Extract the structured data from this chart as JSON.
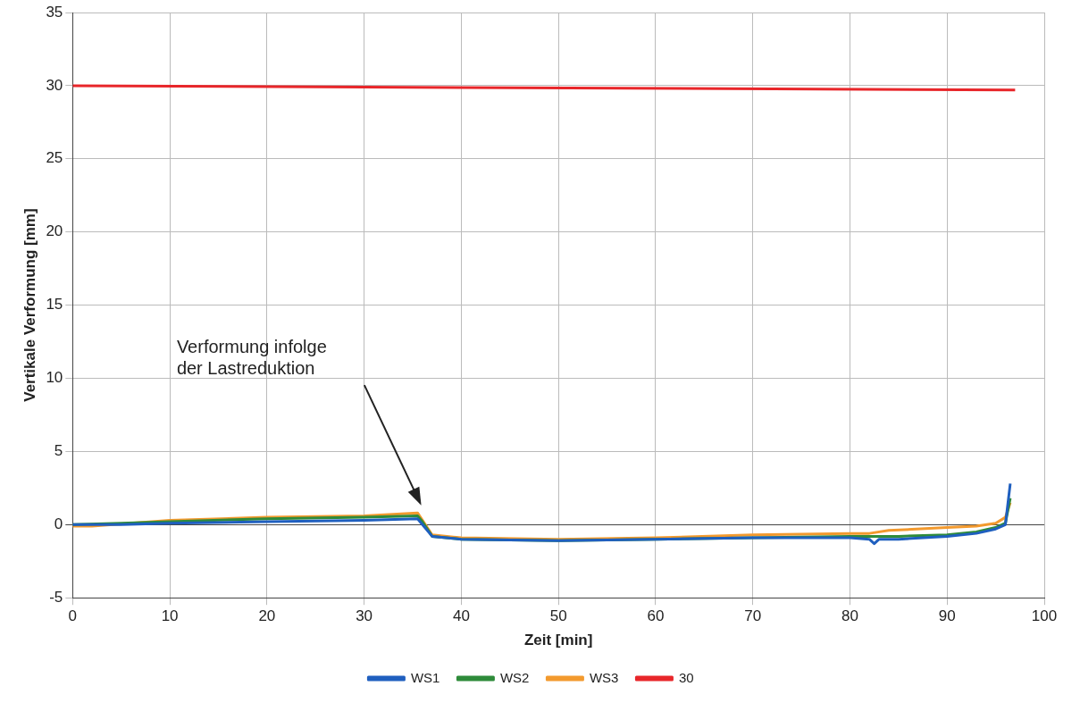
{
  "chart_data": {
    "type": "line",
    "xlabel": "Zeit [min]",
    "ylabel": "Vertikale Verformung [mm]",
    "xlim": [
      0,
      100
    ],
    "xticks": [
      0,
      10,
      20,
      30,
      40,
      50,
      60,
      70,
      80,
      90,
      100
    ],
    "ylim": [
      -5,
      35
    ],
    "yticks": [
      -5,
      0,
      5,
      10,
      15,
      20,
      25,
      30,
      35
    ],
    "grid": true,
    "legend": "bottom",
    "marker": "none",
    "line_style": "solid",
    "series": [
      {
        "name": "WS1",
        "color": "#1f5fbf",
        "x": [
          0,
          5,
          10,
          20,
          30,
          35.5,
          36,
          37,
          40,
          50,
          60,
          70,
          80,
          82,
          82.5,
          83,
          85,
          90,
          93,
          95,
          96,
          96.5
        ],
        "values": [
          0,
          0,
          0.1,
          0.2,
          0.3,
          0.4,
          0,
          -0.8,
          -1,
          -1.1,
          -1,
          -0.9,
          -0.9,
          -1,
          -1.3,
          -1,
          -1,
          -0.8,
          -0.6,
          -0.3,
          0,
          2.8
        ]
      },
      {
        "name": "WS2",
        "color": "#2e8b3a",
        "x": [
          0,
          5,
          10,
          20,
          30,
          35.5,
          36,
          37,
          40,
          50,
          60,
          70,
          80,
          82,
          85,
          90,
          93,
          95,
          96,
          96.5
        ],
        "values": [
          0,
          0.1,
          0.2,
          0.4,
          0.5,
          0.6,
          0.2,
          -0.8,
          -1,
          -1.1,
          -1,
          -0.9,
          -0.8,
          -0.8,
          -0.8,
          -0.7,
          -0.5,
          -0.2,
          0.1,
          1.8
        ]
      },
      {
        "name": "WS3",
        "color": "#f39a2e",
        "x": [
          0,
          2,
          10,
          20,
          30,
          35.5,
          36,
          37,
          40,
          50,
          60,
          70,
          80,
          82,
          84,
          90,
          93,
          95,
          96,
          96.5
        ],
        "values": [
          -0.1,
          -0.1,
          0.3,
          0.5,
          0.6,
          0.8,
          0.3,
          -0.7,
          -0.9,
          -1,
          -0.9,
          -0.7,
          -0.6,
          -0.6,
          -0.4,
          -0.2,
          -0.1,
          0.1,
          0.5,
          1.5
        ]
      },
      {
        "name": "30",
        "color": "#e8262a",
        "x": [
          0,
          97
        ],
        "values": [
          30,
          29.7
        ]
      }
    ],
    "annotations": [
      "Verformung infolge\nder Lastreduktion"
    ]
  }
}
